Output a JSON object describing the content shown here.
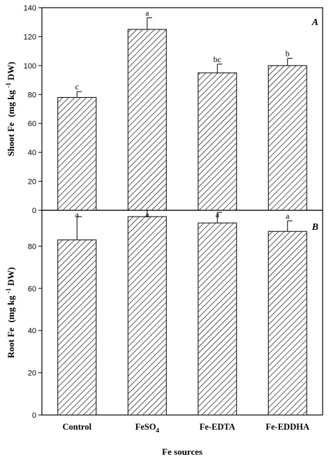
{
  "chart_data": [
    {
      "type": "bar",
      "panel_label": "A",
      "categories": [
        "Control",
        "FeSO4",
        "Fe-EDTA",
        "Fe-EDDHA"
      ],
      "values": [
        78,
        125,
        95,
        100
      ],
      "errors": [
        4,
        8,
        6,
        5
      ],
      "significance": [
        "c",
        "a",
        "bc",
        "b"
      ],
      "ylabel_main": "Shoot Fe",
      "ylabel_unit_pre": "(mg kg",
      "ylabel_unit_sup": "-1",
      "ylabel_unit_post": "DW)",
      "ylim": [
        0,
        140
      ],
      "yticks": [
        0,
        20,
        40,
        60,
        80,
        100,
        120,
        140
      ],
      "ytick_labels": [
        "0",
        "20",
        "40",
        "60",
        "80",
        "100",
        "120",
        "140"
      ],
      "bar_fill": "hatched-diagonal",
      "grid": false
    },
    {
      "type": "bar",
      "panel_label": "B",
      "categories": [
        "Control",
        "FeSO4",
        "Fe-EDTA",
        "Fe-EDDHA"
      ],
      "values": [
        83,
        94,
        91,
        87
      ],
      "errors": [
        11,
        3,
        5,
        5
      ],
      "significance": [
        "a",
        "a",
        "a",
        "a"
      ],
      "ylabel_main": "Root Fe",
      "ylabel_unit_pre": "(mg kg",
      "ylabel_unit_sup": "-1",
      "ylabel_unit_post": "DW)",
      "ylim": [
        0,
        97
      ],
      "yticks": [
        0,
        20,
        40,
        60,
        80
      ],
      "ytick_labels": [
        "0",
        "20",
        "40",
        "60",
        "80"
      ],
      "bar_fill": "hatched-diagonal",
      "grid": false
    }
  ],
  "x_tick_labels": [
    "Control",
    "FeSO",
    "Fe-EDTA",
    "Fe-EDDHA"
  ],
  "x_tick_subscripts": [
    "",
    "4",
    "",
    ""
  ],
  "xlabel": "Fe sources",
  "colors": {
    "axis": "#000000",
    "bar_fill": "#ffffff",
    "hatch": "#000000",
    "background": "#ffffff"
  }
}
